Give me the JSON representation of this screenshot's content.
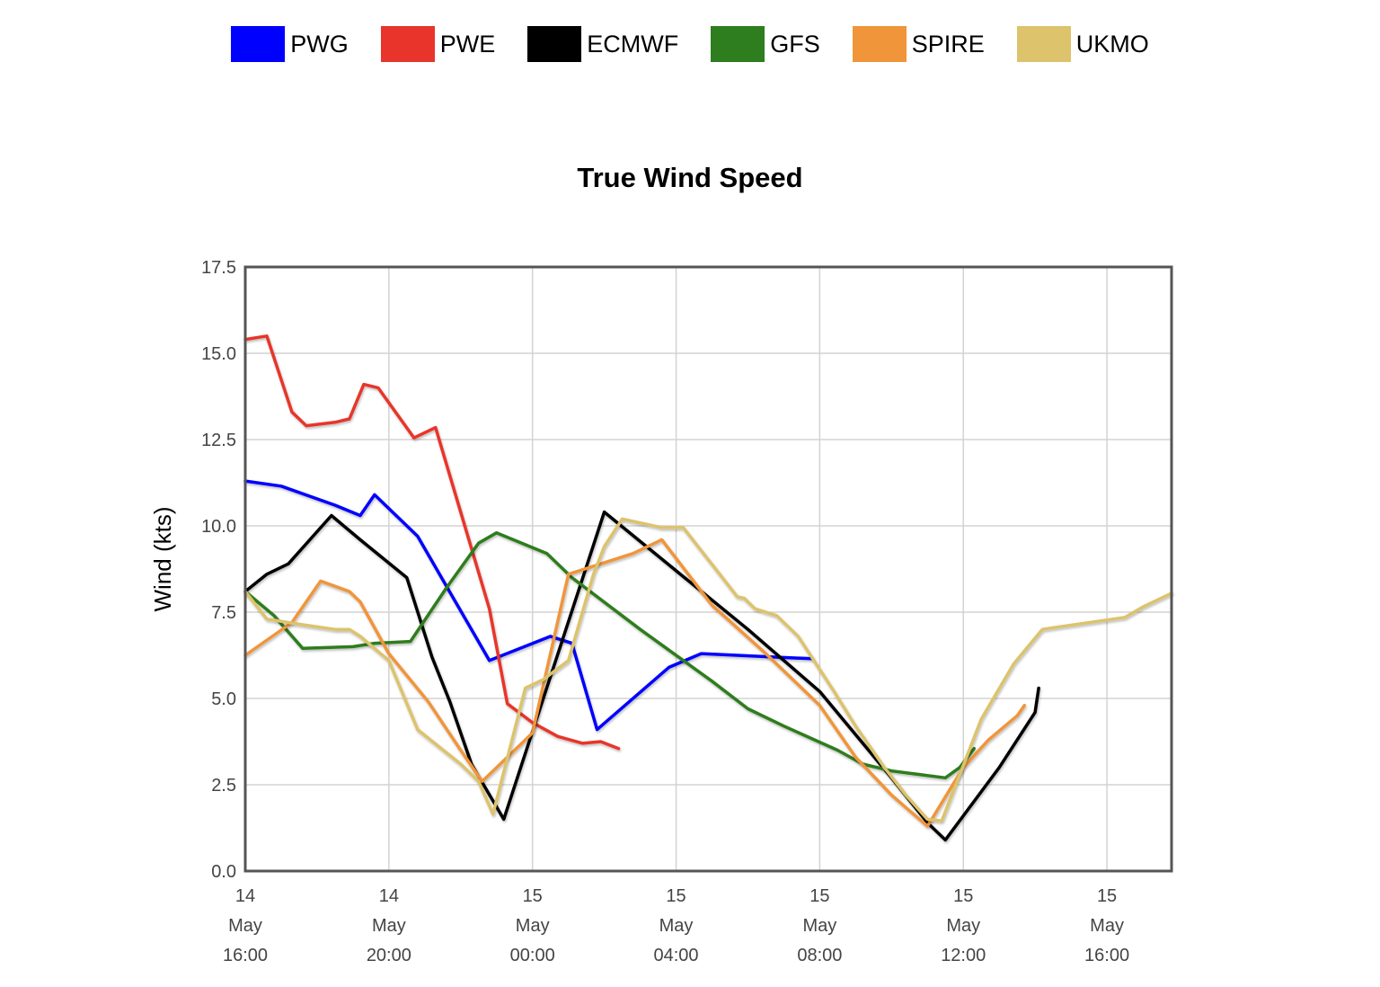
{
  "legend": [
    {
      "name": "PWG",
      "color": "#0000ff"
    },
    {
      "name": "PWE",
      "color": "#e8342a"
    },
    {
      "name": "ECMWF",
      "color": "#000000"
    },
    {
      "name": "GFS",
      "color": "#2e7d1f"
    },
    {
      "name": "SPIRE",
      "color": "#f0953a"
    },
    {
      "name": "UKMO",
      "color": "#dcc36c"
    }
  ],
  "chart_data": {
    "type": "line",
    "title": "True Wind Speed",
    "xlabel": "",
    "ylabel": "Wind (kts)",
    "x_unit": "hours since 14 May 16:00",
    "xlim": [
      0,
      25.8
    ],
    "ylim": [
      0,
      17.5
    ],
    "y_ticks": [
      "0.0",
      "2.5",
      "5.0",
      "7.5",
      "10.0",
      "12.5",
      "15.0",
      "17.5"
    ],
    "y_tick_values": [
      0,
      2.5,
      5,
      7.5,
      10,
      12.5,
      15,
      17.5
    ],
    "x_ticks": [
      {
        "x": 0,
        "lines": [
          "14",
          "May",
          "16:00"
        ]
      },
      {
        "x": 4,
        "lines": [
          "14",
          "May",
          "20:00"
        ]
      },
      {
        "x": 8,
        "lines": [
          "15",
          "May",
          "00:00"
        ]
      },
      {
        "x": 12,
        "lines": [
          "15",
          "May",
          "04:00"
        ]
      },
      {
        "x": 16,
        "lines": [
          "15",
          "May",
          "08:00"
        ]
      },
      {
        "x": 20,
        "lines": [
          "15",
          "May",
          "12:00"
        ]
      },
      {
        "x": 24,
        "lines": [
          "15",
          "May",
          "16:00"
        ]
      }
    ],
    "grid": true,
    "legend_position": "top",
    "series": [
      {
        "name": "PWG",
        "color": "#0000ff",
        "points": [
          [
            0,
            11.3
          ],
          [
            1,
            11.15
          ],
          [
            2.5,
            10.6
          ],
          [
            3.2,
            10.3
          ],
          [
            3.6,
            10.9
          ],
          [
            4.8,
            9.7
          ],
          [
            6.8,
            6.1
          ],
          [
            8.5,
            6.8
          ],
          [
            9.1,
            6.6
          ],
          [
            9.8,
            4.1
          ],
          [
            11.8,
            5.9
          ],
          [
            12.7,
            6.3
          ],
          [
            13.7,
            6.25
          ],
          [
            14.7,
            6.2
          ],
          [
            15.8,
            6.15
          ]
        ]
      },
      {
        "name": "PWE",
        "color": "#e8342a",
        "points": [
          [
            0,
            15.4
          ],
          [
            0.6,
            15.5
          ],
          [
            1.3,
            13.3
          ],
          [
            1.7,
            12.9
          ],
          [
            2.5,
            13.0
          ],
          [
            2.9,
            13.1
          ],
          [
            3.3,
            14.1
          ],
          [
            3.7,
            14.0
          ],
          [
            4.7,
            12.55
          ],
          [
            5.3,
            12.85
          ],
          [
            6.8,
            7.6
          ],
          [
            7.3,
            4.85
          ],
          [
            8.0,
            4.3
          ],
          [
            8.7,
            3.9
          ],
          [
            9.4,
            3.7
          ],
          [
            9.9,
            3.75
          ],
          [
            10.4,
            3.55
          ]
        ]
      },
      {
        "name": "ECMWF",
        "color": "#000000",
        "points": [
          [
            0,
            8.1
          ],
          [
            0.6,
            8.6
          ],
          [
            1.2,
            8.9
          ],
          [
            2.4,
            10.3
          ],
          [
            3.2,
            9.6
          ],
          [
            4.5,
            8.5
          ],
          [
            5.2,
            6.2
          ],
          [
            5.7,
            4.9
          ],
          [
            6.3,
            3.1
          ],
          [
            7.2,
            1.5
          ],
          [
            10.0,
            10.4
          ],
          [
            12.0,
            8.7
          ],
          [
            14.0,
            7.0
          ],
          [
            16.0,
            5.2
          ],
          [
            18.0,
            2.7
          ],
          [
            19.0,
            1.4
          ],
          [
            19.5,
            0.9
          ],
          [
            20.5,
            2.3
          ],
          [
            21.0,
            3.0
          ],
          [
            22.0,
            4.6
          ],
          [
            22.1,
            5.3
          ]
        ]
      },
      {
        "name": "GFS",
        "color": "#2e7d1f",
        "points": [
          [
            0,
            8.1
          ],
          [
            0.8,
            7.4
          ],
          [
            1.6,
            6.45
          ],
          [
            3.0,
            6.5
          ],
          [
            3.6,
            6.6
          ],
          [
            4.6,
            6.65
          ],
          [
            5.6,
            8.2
          ],
          [
            6.5,
            9.5
          ],
          [
            7.0,
            9.8
          ],
          [
            8.4,
            9.2
          ],
          [
            9.1,
            8.5
          ],
          [
            11.0,
            7.0
          ],
          [
            13.0,
            5.5
          ],
          [
            14.0,
            4.7
          ],
          [
            15.0,
            4.2
          ],
          [
            16.5,
            3.5
          ],
          [
            17.2,
            3.1
          ],
          [
            18.0,
            2.9
          ],
          [
            19.5,
            2.7
          ],
          [
            19.9,
            3.0
          ],
          [
            20.3,
            3.55
          ]
        ]
      },
      {
        "name": "SPIRE",
        "color": "#f0953a",
        "points": [
          [
            0,
            6.25
          ],
          [
            1.3,
            7.2
          ],
          [
            2.1,
            8.4
          ],
          [
            2.9,
            8.1
          ],
          [
            3.2,
            7.8
          ],
          [
            4.0,
            6.3
          ],
          [
            5.1,
            4.9
          ],
          [
            6.0,
            3.5
          ],
          [
            6.6,
            2.6
          ],
          [
            8.0,
            4.0
          ],
          [
            9.0,
            8.6
          ],
          [
            10.8,
            9.2
          ],
          [
            11.6,
            9.6
          ],
          [
            13.0,
            7.7
          ],
          [
            14.5,
            6.3
          ],
          [
            16.0,
            4.8
          ],
          [
            17.0,
            3.3
          ],
          [
            18.0,
            2.2
          ],
          [
            19.0,
            1.3
          ],
          [
            20.0,
            3.0
          ],
          [
            20.7,
            3.8
          ],
          [
            21.5,
            4.5
          ],
          [
            21.7,
            4.8
          ]
        ]
      },
      {
        "name": "UKMO",
        "color": "#dcc36c",
        "points": [
          [
            0,
            8.1
          ],
          [
            0.6,
            7.3
          ],
          [
            1.5,
            7.15
          ],
          [
            2.5,
            7.0
          ],
          [
            2.9,
            7.0
          ],
          [
            3.2,
            6.8
          ],
          [
            4.0,
            6.1
          ],
          [
            4.8,
            4.1
          ],
          [
            6.0,
            3.1
          ],
          [
            6.5,
            2.6
          ],
          [
            6.9,
            1.65
          ],
          [
            7.8,
            5.3
          ],
          [
            8.3,
            5.55
          ],
          [
            9.0,
            6.1
          ],
          [
            9.7,
            8.6
          ],
          [
            10.0,
            9.4
          ],
          [
            10.5,
            10.2
          ],
          [
            11.6,
            9.95
          ],
          [
            12.2,
            9.95
          ],
          [
            13.7,
            7.95
          ],
          [
            13.9,
            7.9
          ],
          [
            14.2,
            7.6
          ],
          [
            14.8,
            7.4
          ],
          [
            15.4,
            6.8
          ],
          [
            16.4,
            5.2
          ],
          [
            17.0,
            4.2
          ],
          [
            17.8,
            3.0
          ],
          [
            18.4,
            2.2
          ],
          [
            19.0,
            1.5
          ],
          [
            19.4,
            1.45
          ],
          [
            20.5,
            4.4
          ],
          [
            21.4,
            6.0
          ],
          [
            22.2,
            7.0
          ],
          [
            22.5,
            7.05
          ],
          [
            24.5,
            7.35
          ],
          [
            25.0,
            7.65
          ],
          [
            25.8,
            8.05
          ]
        ]
      }
    ]
  }
}
